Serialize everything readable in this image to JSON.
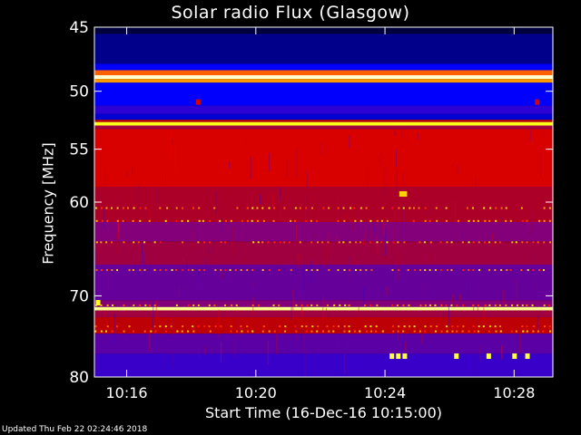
{
  "title": "Solar radio Flux (Glasgow)",
  "footer": "Updated Thu Feb 22 02:24:46 2018",
  "chart_data": {
    "type": "heatmap",
    "title": "Solar radio Flux (Glasgow)",
    "xlabel": "Start Time (16-Dec-16 10:15:00)",
    "ylabel": "Frequency [MHz]",
    "x_ticks": [
      "10:16",
      "10:20",
      "10:24",
      "10:28"
    ],
    "x_tick_minutes": [
      16,
      20,
      24,
      28
    ],
    "xlim_minutes": [
      15.0,
      29.2
    ],
    "y_ticks": [
      45,
      50,
      55,
      60,
      70,
      80
    ],
    "ylim": [
      45,
      80
    ],
    "y_scale": "log",
    "grid": false,
    "colormap": [
      "#000000",
      "#000080",
      "#0000ff",
      "#4000c0",
      "#800080",
      "#c00000",
      "#ff0000",
      "#ff8000",
      "#ffff00",
      "#ffffff"
    ],
    "bands": [
      {
        "f0": 45.0,
        "f1": 45.5,
        "level": 0.05
      },
      {
        "f0": 45.5,
        "f1": 47.8,
        "level": 0.12
      },
      {
        "f0": 47.8,
        "f1": 48.3,
        "level": 0.22
      },
      {
        "f0": 48.3,
        "f1": 48.7,
        "level": 0.75
      },
      {
        "f0": 48.7,
        "f1": 49.0,
        "level": 0.98
      },
      {
        "f0": 49.0,
        "f1": 49.3,
        "level": 0.8
      },
      {
        "f0": 49.3,
        "f1": 51.2,
        "level": 0.22
      },
      {
        "f0": 51.2,
        "f1": 51.9,
        "level": 0.3
      },
      {
        "f0": 51.9,
        "f1": 52.4,
        "level": 0.18
      },
      {
        "f0": 52.4,
        "f1": 52.6,
        "level": 0.55
      },
      {
        "f0": 52.6,
        "f1": 52.9,
        "level": 0.9
      },
      {
        "f0": 52.9,
        "f1": 53.2,
        "level": 0.5
      },
      {
        "f0": 53.2,
        "f1": 58.5,
        "level": 0.6
      },
      {
        "f0": 58.5,
        "f1": 62.0,
        "level": 0.52
      },
      {
        "f0": 62.0,
        "f1": 64.0,
        "level": 0.45
      },
      {
        "f0": 64.0,
        "f1": 66.5,
        "level": 0.5
      },
      {
        "f0": 66.5,
        "f1": 70.5,
        "level": 0.4
      },
      {
        "f0": 70.5,
        "f1": 71.3,
        "level": 0.45
      },
      {
        "f0": 71.3,
        "f1": 71.7,
        "level": 0.95
      },
      {
        "f0": 71.7,
        "f1": 72.5,
        "level": 0.5
      },
      {
        "f0": 72.5,
        "f1": 74.5,
        "level": 0.55
      },
      {
        "f0": 74.5,
        "f1": 77.0,
        "level": 0.38
      },
      {
        "f0": 77.0,
        "f1": 80.0,
        "level": 0.32
      }
    ],
    "bursts": [
      {
        "t": 24.5,
        "f": 59.2,
        "level": 0.85
      },
      {
        "t": 24.6,
        "f": 59.2,
        "level": 0.85
      },
      {
        "t": 24.2,
        "f": 77.3,
        "level": 0.92
      },
      {
        "t": 24.4,
        "f": 77.3,
        "level": 0.92
      },
      {
        "t": 24.6,
        "f": 77.3,
        "level": 0.92
      },
      {
        "t": 26.2,
        "f": 77.3,
        "level": 0.92
      },
      {
        "t": 27.2,
        "f": 77.3,
        "level": 0.92
      },
      {
        "t": 28.0,
        "f": 77.3,
        "level": 0.92
      },
      {
        "t": 28.4,
        "f": 77.3,
        "level": 0.92
      },
      {
        "t": 15.1,
        "f": 70.8,
        "level": 0.9
      },
      {
        "t": 18.2,
        "f": 50.9,
        "level": 0.6
      },
      {
        "t": 28.7,
        "f": 50.9,
        "level": 0.6
      }
    ]
  }
}
